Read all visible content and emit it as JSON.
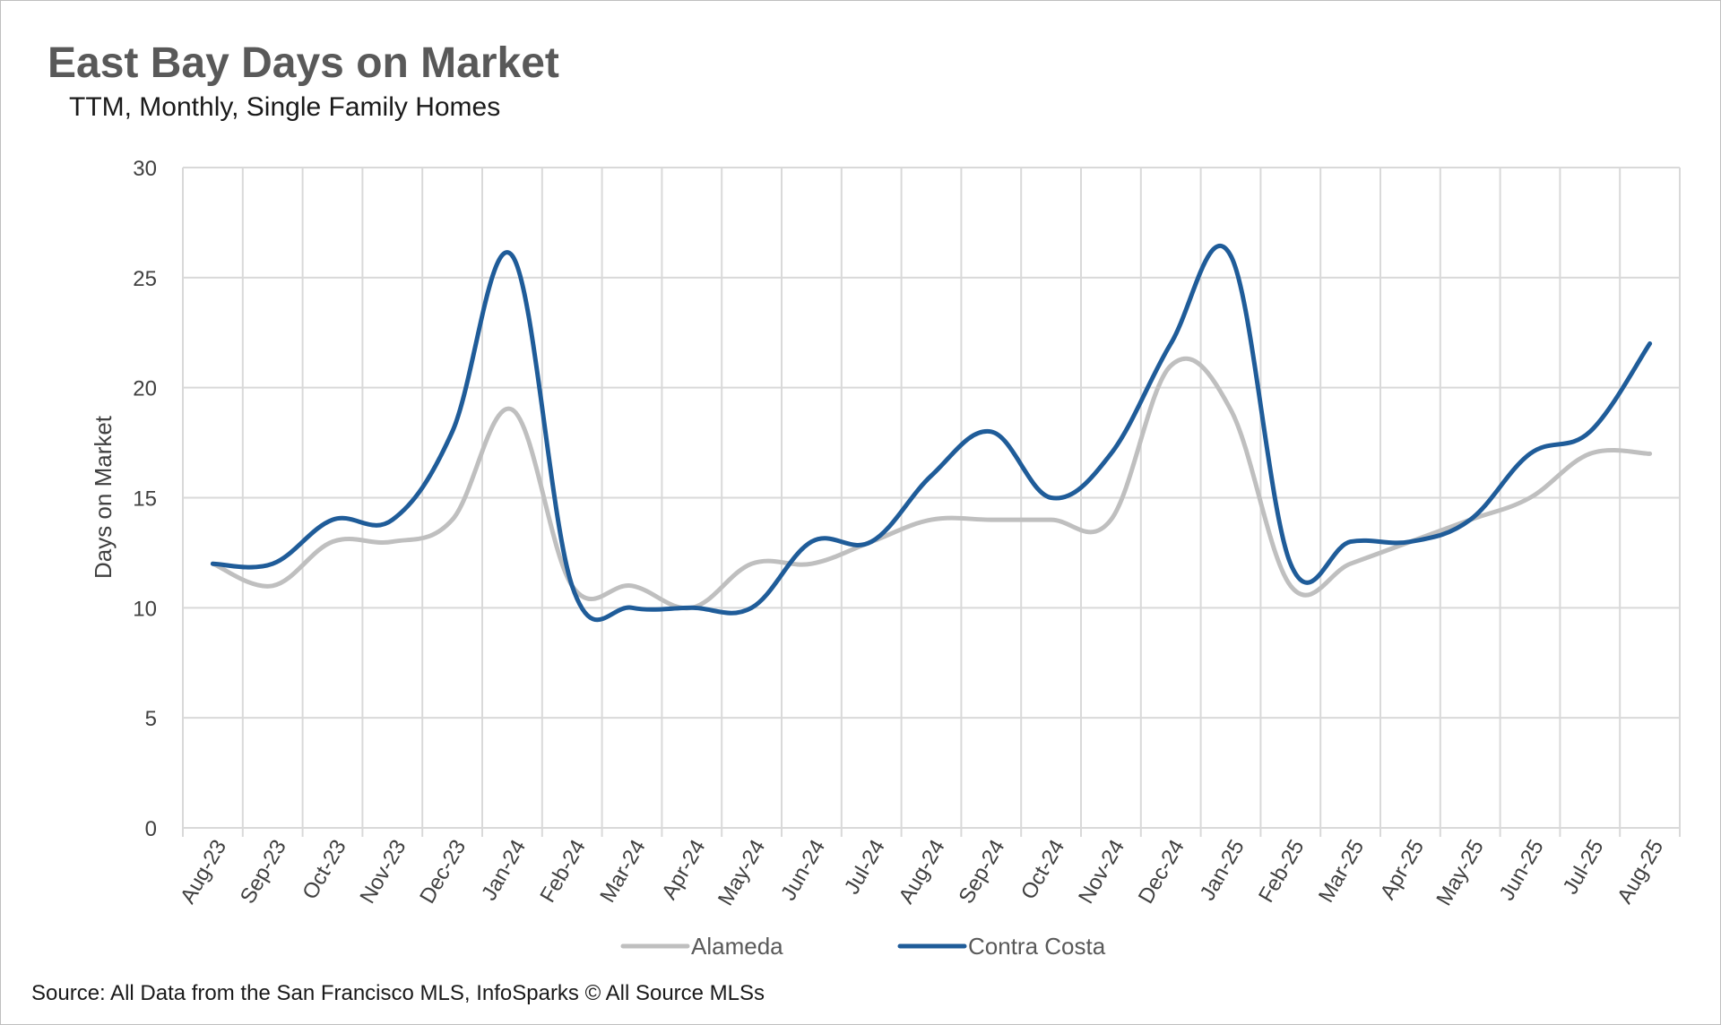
{
  "title": "East Bay Days on Market",
  "subtitle": "TTM, Monthly, Single Family Homes",
  "source": "Source: All Data from the San Francisco MLS, InfoSparks © All Source MLSs",
  "colors": {
    "alameda": "#bfbfbf",
    "contra_costa": "#1f5c99",
    "grid": "#d9d9d9",
    "text": "#404040"
  },
  "chart_data": {
    "type": "line",
    "ylabel": "Days on Market",
    "xlabel": "",
    "ylim": [
      0,
      30
    ],
    "y_ticks": [
      0,
      5,
      10,
      15,
      20,
      25,
      30
    ],
    "grid": true,
    "legend_position": "bottom",
    "categories": [
      "Aug-23",
      "Sep-23",
      "Oct-23",
      "Nov-23",
      "Dec-23",
      "Jan-24",
      "Feb-24",
      "Mar-24",
      "Apr-24",
      "May-24",
      "Jun-24",
      "Jul-24",
      "Aug-24",
      "Sep-24",
      "Oct-24",
      "Nov-24",
      "Dec-24",
      "Jan-25",
      "Feb-25",
      "Mar-25",
      "Apr-25",
      "May-25",
      "Jun-25",
      "Jul-25",
      "Aug-25"
    ],
    "series": [
      {
        "name": "Alameda",
        "color": "#bfbfbf",
        "values": [
          12,
          11,
          13,
          13,
          14,
          19,
          11,
          11,
          10,
          12,
          12,
          13,
          14,
          14,
          14,
          14,
          21,
          19,
          11,
          12,
          13,
          14,
          15,
          17,
          17
        ]
      },
      {
        "name": "Contra Costa",
        "color": "#1f5c99",
        "values": [
          12,
          12,
          14,
          14,
          18,
          26,
          11,
          10,
          10,
          10,
          13,
          13,
          16,
          18,
          15,
          17,
          22,
          26,
          12,
          13,
          13,
          14,
          17,
          18,
          22
        ]
      }
    ]
  }
}
